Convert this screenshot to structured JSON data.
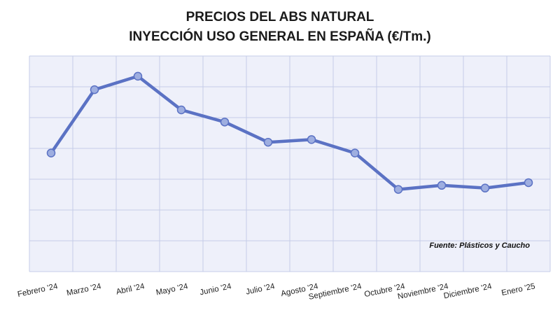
{
  "chart_data": {
    "type": "line",
    "title_line1": "PRECIOS DEL ABS NATURAL",
    "title_line2": "INYECCIÓN USO GENERAL EN ESPAÑA (€/Tm.)",
    "source": "Fuente: Plásticos y Caucho",
    "categories": [
      "Febrero '24",
      "Marzo '24",
      "Abril '24",
      "Mayo '24",
      "Junio '24",
      "Julio '24",
      "Agosto '24",
      "Septiembre '24",
      "Octubre '24",
      "Noviembre '24",
      "Diciembre '24",
      "Enero '25"
    ],
    "values": [
      4.4,
      6.75,
      7.25,
      6.0,
      5.55,
      4.8,
      4.9,
      4.4,
      3.05,
      3.2,
      3.1,
      3.3
    ],
    "ylim": [
      0,
      8
    ],
    "grid": true,
    "colors": {
      "line": "#5b72c4",
      "marker": "#9eaee0",
      "grid": "#c5cde8",
      "background": "#eef0fa"
    }
  }
}
